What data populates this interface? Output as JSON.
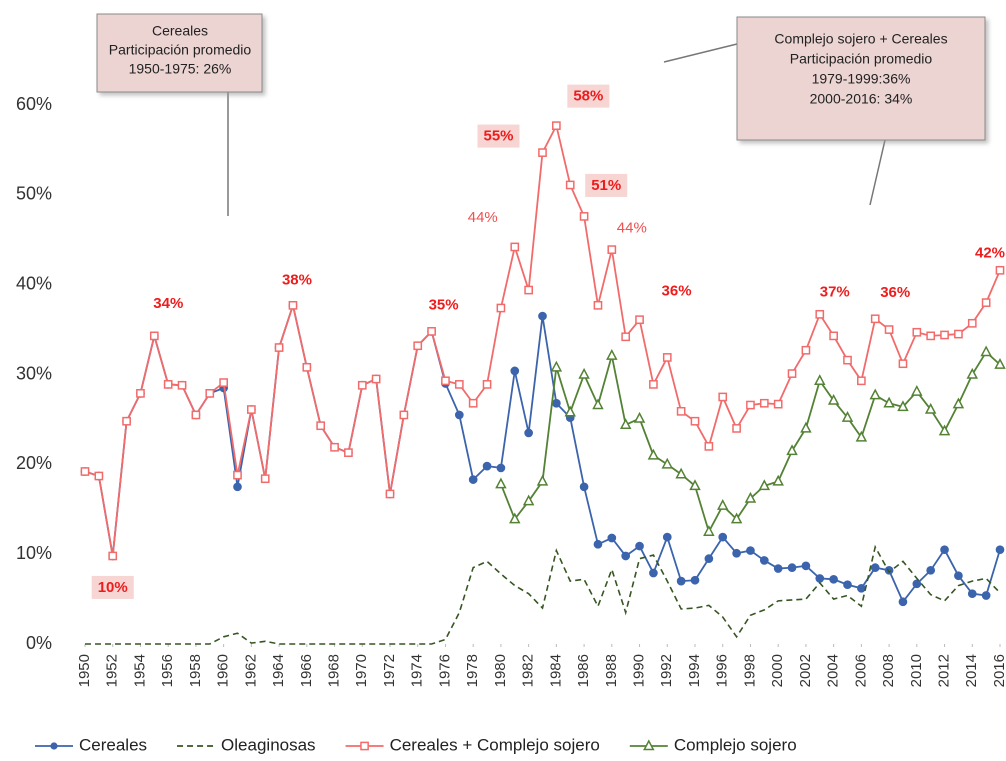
{
  "chart_data": {
    "type": "line",
    "x": [
      1950,
      1951,
      1952,
      1953,
      1954,
      1955,
      1956,
      1957,
      1958,
      1959,
      1960,
      1961,
      1962,
      1963,
      1964,
      1965,
      1966,
      1967,
      1968,
      1969,
      1970,
      1971,
      1972,
      1973,
      1974,
      1975,
      1976,
      1977,
      1978,
      1979,
      1980,
      1981,
      1982,
      1983,
      1984,
      1985,
      1986,
      1987,
      1988,
      1989,
      1990,
      1991,
      1992,
      1993,
      1994,
      1995,
      1996,
      1997,
      1998,
      1999,
      2000,
      2001,
      2002,
      2003,
      2004,
      2005,
      2006,
      2007,
      2008,
      2009,
      2010,
      2011,
      2012,
      2013,
      2014,
      2015,
      2016
    ],
    "xlim": [
      1950,
      2016
    ],
    "xticks": [
      1950,
      1952,
      1954,
      1956,
      1958,
      1960,
      1962,
      1964,
      1966,
      1968,
      1970,
      1972,
      1974,
      1976,
      1978,
      1980,
      1982,
      1984,
      1986,
      1988,
      1990,
      1992,
      1994,
      1996,
      1998,
      2000,
      2002,
      2004,
      2006,
      2008,
      2010,
      2012,
      2014,
      2016
    ],
    "ylim": [
      0,
      60
    ],
    "yticks": [
      {
        "value": 0,
        "label": "0%"
      },
      {
        "value": 10,
        "label": "10%"
      },
      {
        "value": 20,
        "label": "20%"
      },
      {
        "value": 30,
        "label": "30%"
      },
      {
        "value": 40,
        "label": "40%"
      },
      {
        "value": 50,
        "label": "50%"
      },
      {
        "value": 60,
        "label": "60%"
      }
    ],
    "grid": false,
    "legend": "bottom",
    "series": [
      {
        "name": "Cereales",
        "color": "#3b64ad",
        "marker": "circle",
        "values": [
          19.2,
          18.7,
          9.8,
          24.8,
          27.9,
          34.3,
          28.9,
          28.8,
          25.5,
          27.9,
          28.5,
          17.5,
          26.1,
          18.4,
          33.0,
          37.7,
          30.8,
          24.3,
          21.9,
          21.3,
          28.8,
          29.5,
          16.7,
          25.5,
          33.2,
          34.8,
          29.0,
          25.5,
          18.3,
          19.8,
          19.6,
          30.4,
          23.5,
          36.5,
          26.8,
          25.2,
          17.5,
          11.1,
          11.8,
          9.8,
          10.9,
          7.9,
          11.9,
          7.0,
          7.1,
          9.5,
          11.9,
          10.1,
          10.4,
          9.3,
          8.4,
          8.5,
          8.7,
          7.3,
          7.2,
          6.6,
          6.2,
          8.5,
          8.2,
          4.7,
          6.7,
          8.2,
          10.5,
          7.6,
          5.6,
          5.4,
          10.5
        ]
      },
      {
        "name": "Oleaginosas",
        "color": "#375623",
        "dashed": true,
        "values": [
          0,
          0,
          0,
          0,
          0,
          0,
          0,
          0,
          0,
          0,
          0.8,
          1.2,
          0.1,
          0.3,
          0,
          0,
          0,
          0,
          0,
          0,
          0,
          0,
          0,
          0,
          0,
          0,
          0.5,
          3.5,
          8.5,
          9.2,
          7.8,
          6.5,
          5.6,
          4.0,
          10.4,
          7.0,
          7.2,
          4.2,
          8.3,
          3.5,
          9.5,
          9.9,
          7.0,
          3.9,
          4.0,
          4.3,
          3.0,
          0.8,
          3.2,
          3.8,
          4.8,
          4.9,
          5.0,
          6.8,
          5.0,
          5.4,
          4.2,
          10.8,
          8.0,
          9.2,
          7.3,
          5.5,
          4.8,
          6.5,
          7.0,
          7.3,
          5.7
        ]
      },
      {
        "name": "Cereales + Complejo sojero",
        "color": "#f26b6b",
        "marker": "square",
        "values": [
          19.2,
          18.7,
          9.8,
          24.8,
          27.9,
          34.3,
          28.9,
          28.8,
          25.5,
          27.9,
          29.1,
          18.8,
          26.1,
          18.4,
          33.0,
          37.7,
          30.8,
          24.3,
          21.9,
          21.3,
          28.8,
          29.5,
          16.7,
          25.5,
          33.2,
          34.8,
          29.3,
          28.9,
          26.8,
          28.9,
          37.4,
          44.2,
          39.4,
          54.7,
          57.7,
          51.1,
          47.6,
          37.7,
          43.9,
          34.2,
          36.1,
          28.9,
          31.9,
          25.9,
          24.8,
          22.0,
          27.5,
          24.0,
          26.6,
          26.8,
          26.7,
          30.1,
          32.7,
          36.7,
          34.3,
          31.6,
          29.3,
          36.2,
          35.0,
          31.2,
          34.7,
          34.3,
          34.4,
          34.5,
          35.7,
          38.0,
          41.6
        ],
        "value_labels": [
          null,
          null,
          "10%",
          null,
          null,
          "34%",
          null,
          null,
          null,
          null,
          null,
          null,
          null,
          null,
          null,
          "38%",
          null,
          null,
          null,
          null,
          null,
          null,
          null,
          null,
          null,
          "35%",
          null,
          null,
          null,
          null,
          null,
          "44%",
          null,
          "55%",
          "58%",
          "51%",
          null,
          null,
          "44%",
          null,
          "36%",
          null,
          null,
          null,
          null,
          null,
          null,
          null,
          null,
          null,
          null,
          null,
          null,
          "37%",
          null,
          null,
          null,
          "36%",
          null,
          null,
          null,
          null,
          null,
          null,
          null,
          null,
          "42%"
        ]
      },
      {
        "name": "Complejo sojero",
        "color": "#548235",
        "marker": "triangle",
        "values": [
          null,
          null,
          null,
          null,
          null,
          null,
          null,
          null,
          null,
          null,
          null,
          null,
          null,
          null,
          null,
          null,
          null,
          null,
          null,
          null,
          null,
          null,
          null,
          null,
          null,
          null,
          null,
          null,
          null,
          null,
          17.8,
          13.9,
          15.9,
          18.1,
          30.8,
          25.8,
          30.0,
          26.6,
          32.1,
          24.4,
          25.1,
          21.0,
          20.0,
          18.9,
          17.6,
          12.5,
          15.4,
          13.9,
          16.2,
          17.6,
          18.1,
          21.5,
          24.0,
          29.3,
          27.1,
          25.2,
          23.0,
          27.7,
          26.8,
          26.4,
          28.1,
          26.1,
          23.7,
          26.7,
          30.0,
          32.5,
          31.1
        ]
      }
    ],
    "annotations": [
      {
        "lines": [
          "Cereales",
          "Participación promedio",
          "1950-1975: 26%"
        ]
      },
      {
        "lines": [
          "Complejo  sojero + Cereales",
          "Participación promedio",
          "1979-1999:36%",
          "2000-2016: 34%"
        ]
      }
    ]
  }
}
